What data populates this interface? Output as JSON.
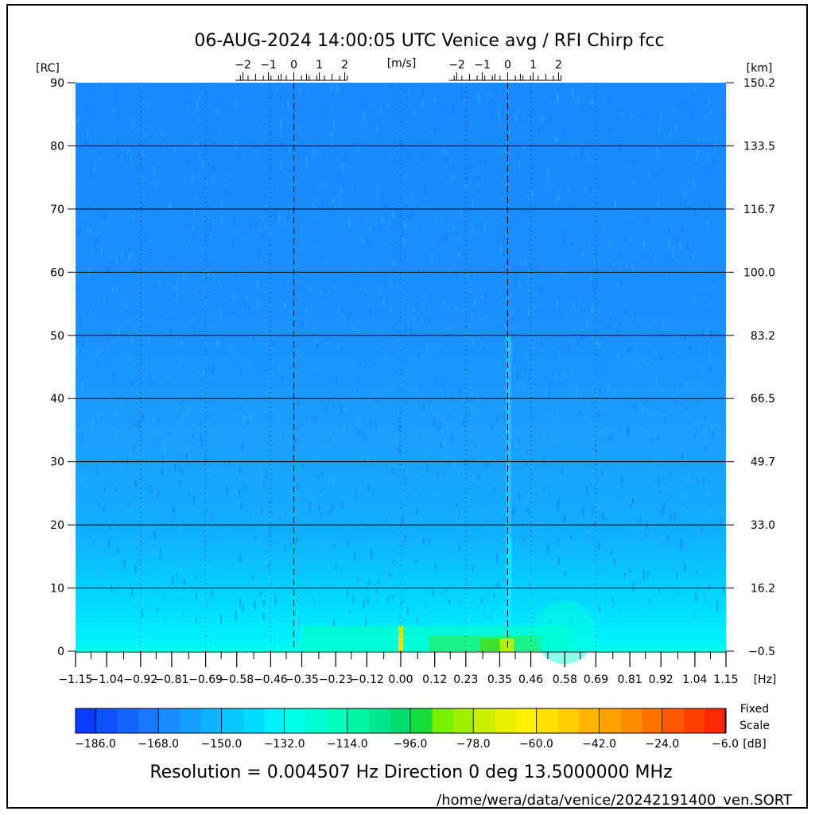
{
  "header": {
    "title": "06-AUG-2024 14:00:05 UTC   Venice      avg / RFI  Chirp fcc"
  },
  "footer": {
    "resolution": "Resolution = 0.004507 Hz  Direction   0 deg   13.5000000 MHz",
    "path": "/home/wera/data/venice/20242191400_ven.SORT"
  },
  "colors": {
    "background_base": "#1a8cff",
    "low_range": "#00ffe6",
    "hotspot": "#ffd700"
  },
  "chart_data": {
    "type": "heatmap",
    "title": "06-AUG-2024 14:00:05 UTC   Venice      avg / RFI  Chirp fcc",
    "x": {
      "label": "[Hz]",
      "range": [
        -1.15,
        1.15
      ],
      "ticks": [
        "-1.15",
        "-1.04",
        "-0.92",
        "-0.81",
        "-0.69",
        "-0.58",
        "-0.46",
        "-0.35",
        "-0.23",
        "-0.12",
        "0.00",
        "0.12",
        "0.23",
        "0.35",
        "0.46",
        "0.58",
        "0.69",
        "0.81",
        "0.92",
        "1.04",
        "1.15"
      ]
    },
    "y_left": {
      "label": "[RC]",
      "range": [
        0,
        90
      ],
      "ticks": [
        "0",
        "10",
        "20",
        "30",
        "40",
        "50",
        "60",
        "70",
        "80",
        "90"
      ]
    },
    "y_right": {
      "label": "[km]",
      "ticks": [
        "-0.5",
        "16.2",
        "33.0",
        "49.7",
        "66.5",
        "83.2",
        "100.0",
        "116.7",
        "133.5",
        "150.2"
      ]
    },
    "velocity_axis": {
      "label": "[m/s]",
      "ticks": [
        "-2",
        "-1",
        "0",
        "1",
        "2"
      ],
      "centers_hz": [
        -0.378,
        0.378
      ]
    },
    "dashed_lines_hz": [
      -0.378,
      0.378
    ],
    "dotted_lines_hz": [
      -0.92,
      -0.69,
      -0.46,
      0.0,
      0.23,
      0.46,
      0.69
    ],
    "grid": true,
    "colorbar": {
      "label": "[dB]",
      "label_extra": [
        "Fixed",
        "Scale"
      ],
      "ticks": [
        "-186.0",
        "-168.0",
        "-150.0",
        "-132.0",
        "-114.0",
        "-96.0",
        "-78.0",
        "-60.0",
        "-42.0",
        "-24.0",
        "-6.0"
      ],
      "colors": [
        "#0a3cff",
        "#0f50ff",
        "#1464ff",
        "#1a78ff",
        "#1a8cff",
        "#14a0ff",
        "#0fb4ff",
        "#0ac8ff",
        "#00dcff",
        "#00f0ff",
        "#00ffe6",
        "#00ffd2",
        "#00ffbe",
        "#00f5a5",
        "#00e68c",
        "#00dc6e",
        "#14dc3c",
        "#78f000",
        "#a0f000",
        "#c8f000",
        "#e6f000",
        "#fff000",
        "#ffe100",
        "#ffcd00",
        "#ffb400",
        "#ffa000",
        "#ff8c00",
        "#ff7300",
        "#ff5a00",
        "#ff4000",
        "#ff2800"
      ]
    },
    "features": [
      {
        "name": "first-order peak",
        "x_hz": 0.378,
        "rc_top": 50,
        "db": -60
      },
      {
        "name": "dc spike",
        "x_hz": 0.0,
        "rc_top": 4,
        "db": -70
      },
      {
        "name": "near-range band",
        "x_hz_range": [
          -1.15,
          1.15
        ],
        "rc_top": 10,
        "db": -128
      }
    ]
  }
}
